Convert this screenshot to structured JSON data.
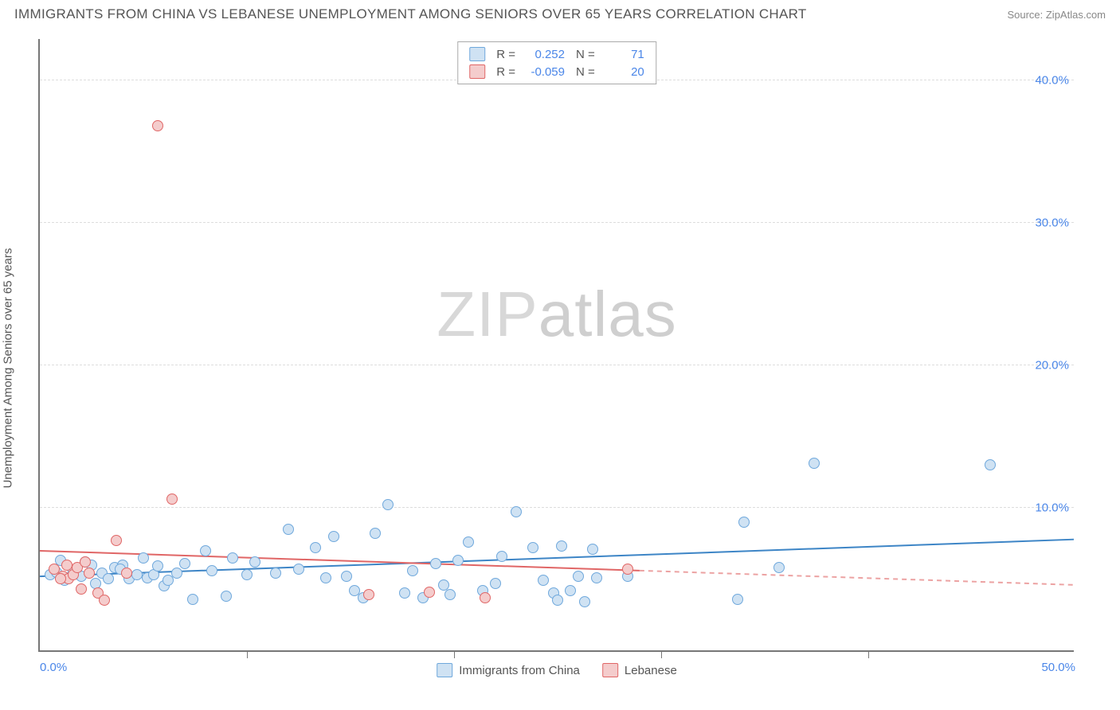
{
  "title": "IMMIGRANTS FROM CHINA VS LEBANESE UNEMPLOYMENT AMONG SENIORS OVER 65 YEARS CORRELATION CHART",
  "source": "Source: ZipAtlas.com",
  "ylabel": "Unemployment Among Seniors over 65 years",
  "watermark_a": "ZIP",
  "watermark_b": "atlas",
  "chart": {
    "type": "scatter",
    "xlim": [
      0,
      50
    ],
    "ylim": [
      0,
      43
    ],
    "xtick_positions": [
      10,
      20,
      30,
      40
    ],
    "x_end_labels": [
      {
        "x": 0,
        "text": "0.0%"
      },
      {
        "x": 50,
        "text": "50.0%"
      }
    ],
    "yticks": [
      {
        "y": 10,
        "label": "10.0%"
      },
      {
        "y": 20,
        "label": "20.0%"
      },
      {
        "y": 30,
        "label": "30.0%"
      },
      {
        "y": 40,
        "label": "40.0%"
      }
    ],
    "grid_color": "#dddddd",
    "background_color": "#ffffff",
    "axis_color": "#777777",
    "label_color": "#4a86e8",
    "marker_radius": 7,
    "marker_stroke_width": 1.2,
    "series": [
      {
        "name": "Immigrants from China",
        "fill": "#cfe2f3",
        "stroke": "#6fa8dc",
        "r_value": "0.252",
        "n_value": "71",
        "trend": {
          "x1": 0,
          "y1": 5.2,
          "x2": 50,
          "y2": 7.8,
          "solid_to_x": 50,
          "color": "#3d85c6",
          "width": 2
        },
        "points": [
          [
            0.5,
            5.3
          ],
          [
            0.8,
            5.5
          ],
          [
            1.0,
            6.3
          ],
          [
            1.2,
            4.9
          ],
          [
            1.3,
            5.1
          ],
          [
            1.6,
            5.6
          ],
          [
            2.0,
            5.2
          ],
          [
            2.2,
            6.2
          ],
          [
            2.5,
            6.0
          ],
          [
            2.7,
            4.7
          ],
          [
            3.0,
            5.4
          ],
          [
            3.3,
            5.0
          ],
          [
            3.6,
            5.8
          ],
          [
            4.0,
            6.0
          ],
          [
            4.3,
            5.0
          ],
          [
            4.7,
            5.3
          ],
          [
            5.0,
            6.5
          ],
          [
            5.2,
            5.1
          ],
          [
            5.5,
            5.3
          ],
          [
            6.0,
            4.5
          ],
          [
            6.2,
            4.9
          ],
          [
            6.6,
            5.4
          ],
          [
            7.0,
            6.1
          ],
          [
            7.4,
            3.6
          ],
          [
            8.0,
            7.0
          ],
          [
            8.3,
            5.6
          ],
          [
            9.0,
            3.8
          ],
          [
            9.3,
            6.5
          ],
          [
            10.0,
            5.3
          ],
          [
            10.4,
            6.2
          ],
          [
            11.4,
            5.4
          ],
          [
            12.0,
            8.5
          ],
          [
            12.5,
            5.7
          ],
          [
            13.3,
            7.2
          ],
          [
            13.8,
            5.1
          ],
          [
            14.2,
            8.0
          ],
          [
            14.8,
            5.2
          ],
          [
            15.2,
            4.2
          ],
          [
            15.6,
            3.7
          ],
          [
            16.2,
            8.2
          ],
          [
            16.8,
            10.2
          ],
          [
            17.6,
            4.0
          ],
          [
            18.0,
            5.6
          ],
          [
            18.5,
            3.7
          ],
          [
            19.1,
            6.1
          ],
          [
            19.5,
            4.6
          ],
          [
            19.8,
            3.9
          ],
          [
            20.2,
            6.3
          ],
          [
            20.7,
            7.6
          ],
          [
            21.4,
            4.2
          ],
          [
            22.0,
            4.7
          ],
          [
            22.3,
            6.6
          ],
          [
            23.0,
            9.7
          ],
          [
            23.8,
            7.2
          ],
          [
            24.3,
            4.9
          ],
          [
            24.8,
            4.0
          ],
          [
            25.0,
            3.5
          ],
          [
            25.2,
            7.3
          ],
          [
            25.6,
            4.2
          ],
          [
            26.0,
            5.2
          ],
          [
            26.3,
            3.4
          ],
          [
            26.7,
            7.1
          ],
          [
            26.9,
            5.1
          ],
          [
            28.4,
            5.2
          ],
          [
            33.7,
            3.6
          ],
          [
            34.0,
            9.0
          ],
          [
            35.7,
            5.8
          ],
          [
            37.4,
            13.1
          ],
          [
            45.9,
            13.0
          ],
          [
            5.7,
            5.9
          ],
          [
            3.9,
            5.7
          ]
        ]
      },
      {
        "name": "Lebanese",
        "fill": "#f4cccc",
        "stroke": "#e06666",
        "r_value": "-0.059",
        "n_value": "20",
        "trend": {
          "x1": 0,
          "y1": 7.0,
          "x2": 50,
          "y2": 4.6,
          "solid_to_x": 29,
          "color": "#e06666",
          "width": 2
        },
        "points": [
          [
            0.7,
            5.7
          ],
          [
            1.1,
            5.2
          ],
          [
            1.3,
            6.0
          ],
          [
            1.4,
            5.0
          ],
          [
            1.6,
            5.3
          ],
          [
            1.8,
            5.8
          ],
          [
            2.0,
            4.3
          ],
          [
            2.2,
            6.2
          ],
          [
            2.4,
            5.4
          ],
          [
            2.8,
            4.0
          ],
          [
            3.1,
            3.5
          ],
          [
            3.7,
            7.7
          ],
          [
            4.2,
            5.4
          ],
          [
            5.7,
            36.8
          ],
          [
            6.4,
            10.6
          ],
          [
            15.9,
            3.9
          ],
          [
            18.8,
            4.1
          ],
          [
            21.5,
            3.7
          ],
          [
            28.4,
            5.7
          ],
          [
            1.0,
            5.0
          ]
        ]
      }
    ]
  },
  "legend_bottom": [
    {
      "label": "Immigrants from China",
      "fill": "#cfe2f3",
      "stroke": "#6fa8dc"
    },
    {
      "label": "Lebanese",
      "fill": "#f4cccc",
      "stroke": "#e06666"
    }
  ]
}
